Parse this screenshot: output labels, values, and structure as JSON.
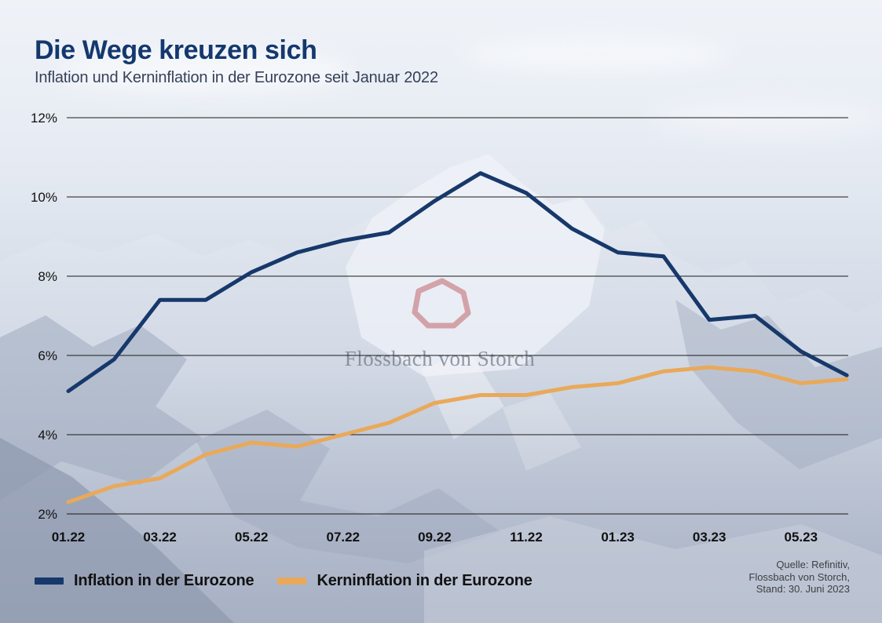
{
  "header": {
    "title": "Die Wege kreuzen sich",
    "subtitle": "Inflation und Kerninflation in der Eurozone seit Januar 2022"
  },
  "watermark": {
    "brand": "Flossbach von Storch",
    "logo_color": "#bf5a60"
  },
  "chart_data": {
    "type": "line",
    "title": "Die Wege kreuzen sich",
    "subtitle": "Inflation und Kerninflation in der Eurozone seit Januar 2022",
    "x": [
      "01.22",
      "02.22",
      "03.22",
      "04.22",
      "05.22",
      "06.22",
      "07.22",
      "08.22",
      "09.22",
      "10.22",
      "11.22",
      "12.22",
      "01.23",
      "02.23",
      "03.23",
      "04.23",
      "05.23",
      "06.23"
    ],
    "x_tick_labels": [
      "01.22",
      "03.22",
      "05.22",
      "07.22",
      "09.22",
      "11.22",
      "01.23",
      "03.23",
      "05.23"
    ],
    "series": [
      {
        "name": "Inflation in der Eurozone",
        "color": "#17386b",
        "values": [
          5.1,
          5.9,
          7.4,
          7.4,
          8.1,
          8.6,
          8.9,
          9.1,
          9.9,
          10.6,
          10.1,
          9.2,
          8.6,
          8.5,
          6.9,
          7.0,
          6.1,
          5.5
        ]
      },
      {
        "name": "Kerninflation in der Eurozone",
        "color": "#e9a95a",
        "values": [
          2.3,
          2.7,
          2.9,
          3.5,
          3.8,
          3.7,
          4.0,
          4.3,
          4.8,
          5.0,
          5.0,
          5.2,
          5.3,
          5.6,
          5.7,
          5.6,
          5.3,
          5.4
        ]
      }
    ],
    "ylim": [
      2,
      12
    ],
    "y_ticks": [
      "2%",
      "4%",
      "6%",
      "8%",
      "10%",
      "12%"
    ],
    "unit": "%",
    "grid": true,
    "grid_color": "#1a1a1a",
    "legend_position": "bottom-left"
  },
  "footer": {
    "source_lines": [
      "Quelle: Refinitiv,",
      "Flossbach von Storch,",
      "Stand: 30. Juni 2023"
    ]
  }
}
